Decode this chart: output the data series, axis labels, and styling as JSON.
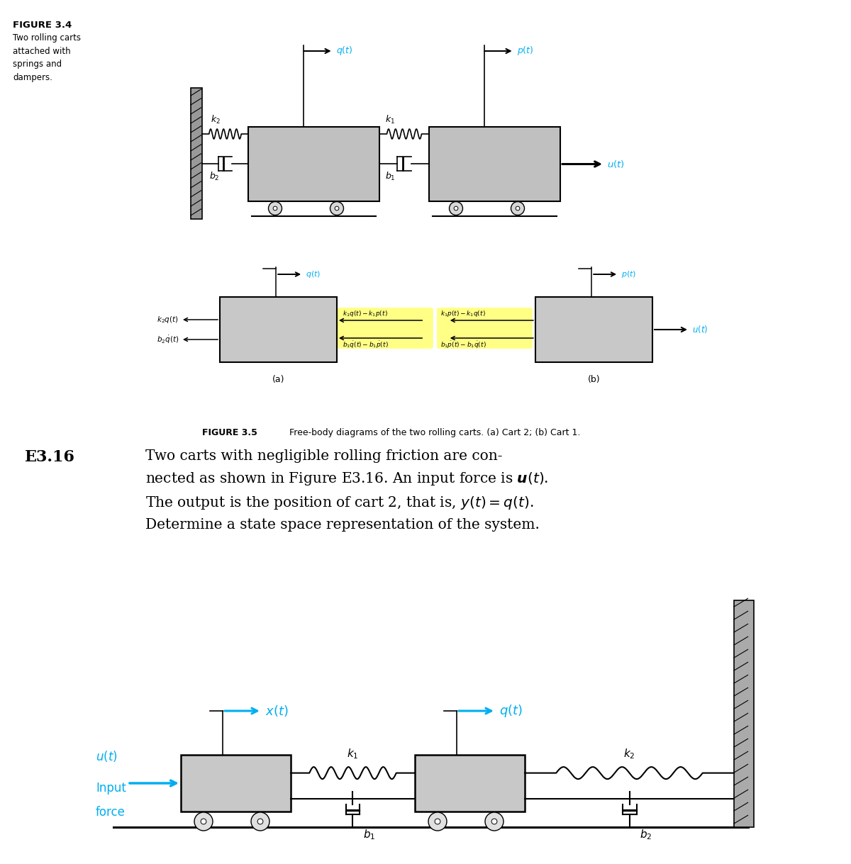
{
  "fig_width": 12.0,
  "fig_height": 12.19,
  "bg_color": "#ffffff",
  "cyan_color": "#00AEEF",
  "gray_cart": "#c0c0c0",
  "yellow_highlight": "#FFFF80",
  "figure34_caption": "FIGURE 3.4",
  "figure34_sub": "Two rolling carts\nattached with\nsprings and\ndampers.",
  "figure35_caption": "FIGURE 3.5",
  "figure35_sub": "Free-body diagrams of the two rolling carts. (a) Cart 2; (b) Cart 1.",
  "e316_line1": "E3.16   Two carts with negligible rolling friction are con-",
  "e316_line2": "nected as shown in Figure E3.16. An input force is $\\boldsymbol{u}$($t$).",
  "e316_line3": "The output is the position of cart 2, that is, $y$($t$) = $q$($t$).",
  "e316_line4": "Determine a state space representation of the system."
}
